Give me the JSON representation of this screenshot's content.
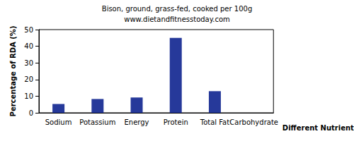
{
  "chart_data": {
    "type": "bar",
    "title": "Bison, ground, grass-fed, cooked per 100g",
    "subtitle": "www.dietandfitnesstoday.com",
    "x_label": "Different Nutrients",
    "y_label": "Percentage of RDA (%)",
    "categories": [
      "Sodium",
      "Potassium",
      "Energy",
      "Protein",
      "Total Fat",
      "Carbohydrate"
    ],
    "values": [
      5.3,
      8.3,
      9.2,
      45,
      13,
      0
    ],
    "color": "#26399a",
    "ylim": [
      0,
      50
    ],
    "yticks": [
      0,
      10,
      20,
      30,
      40,
      50
    ],
    "grid": false
  }
}
